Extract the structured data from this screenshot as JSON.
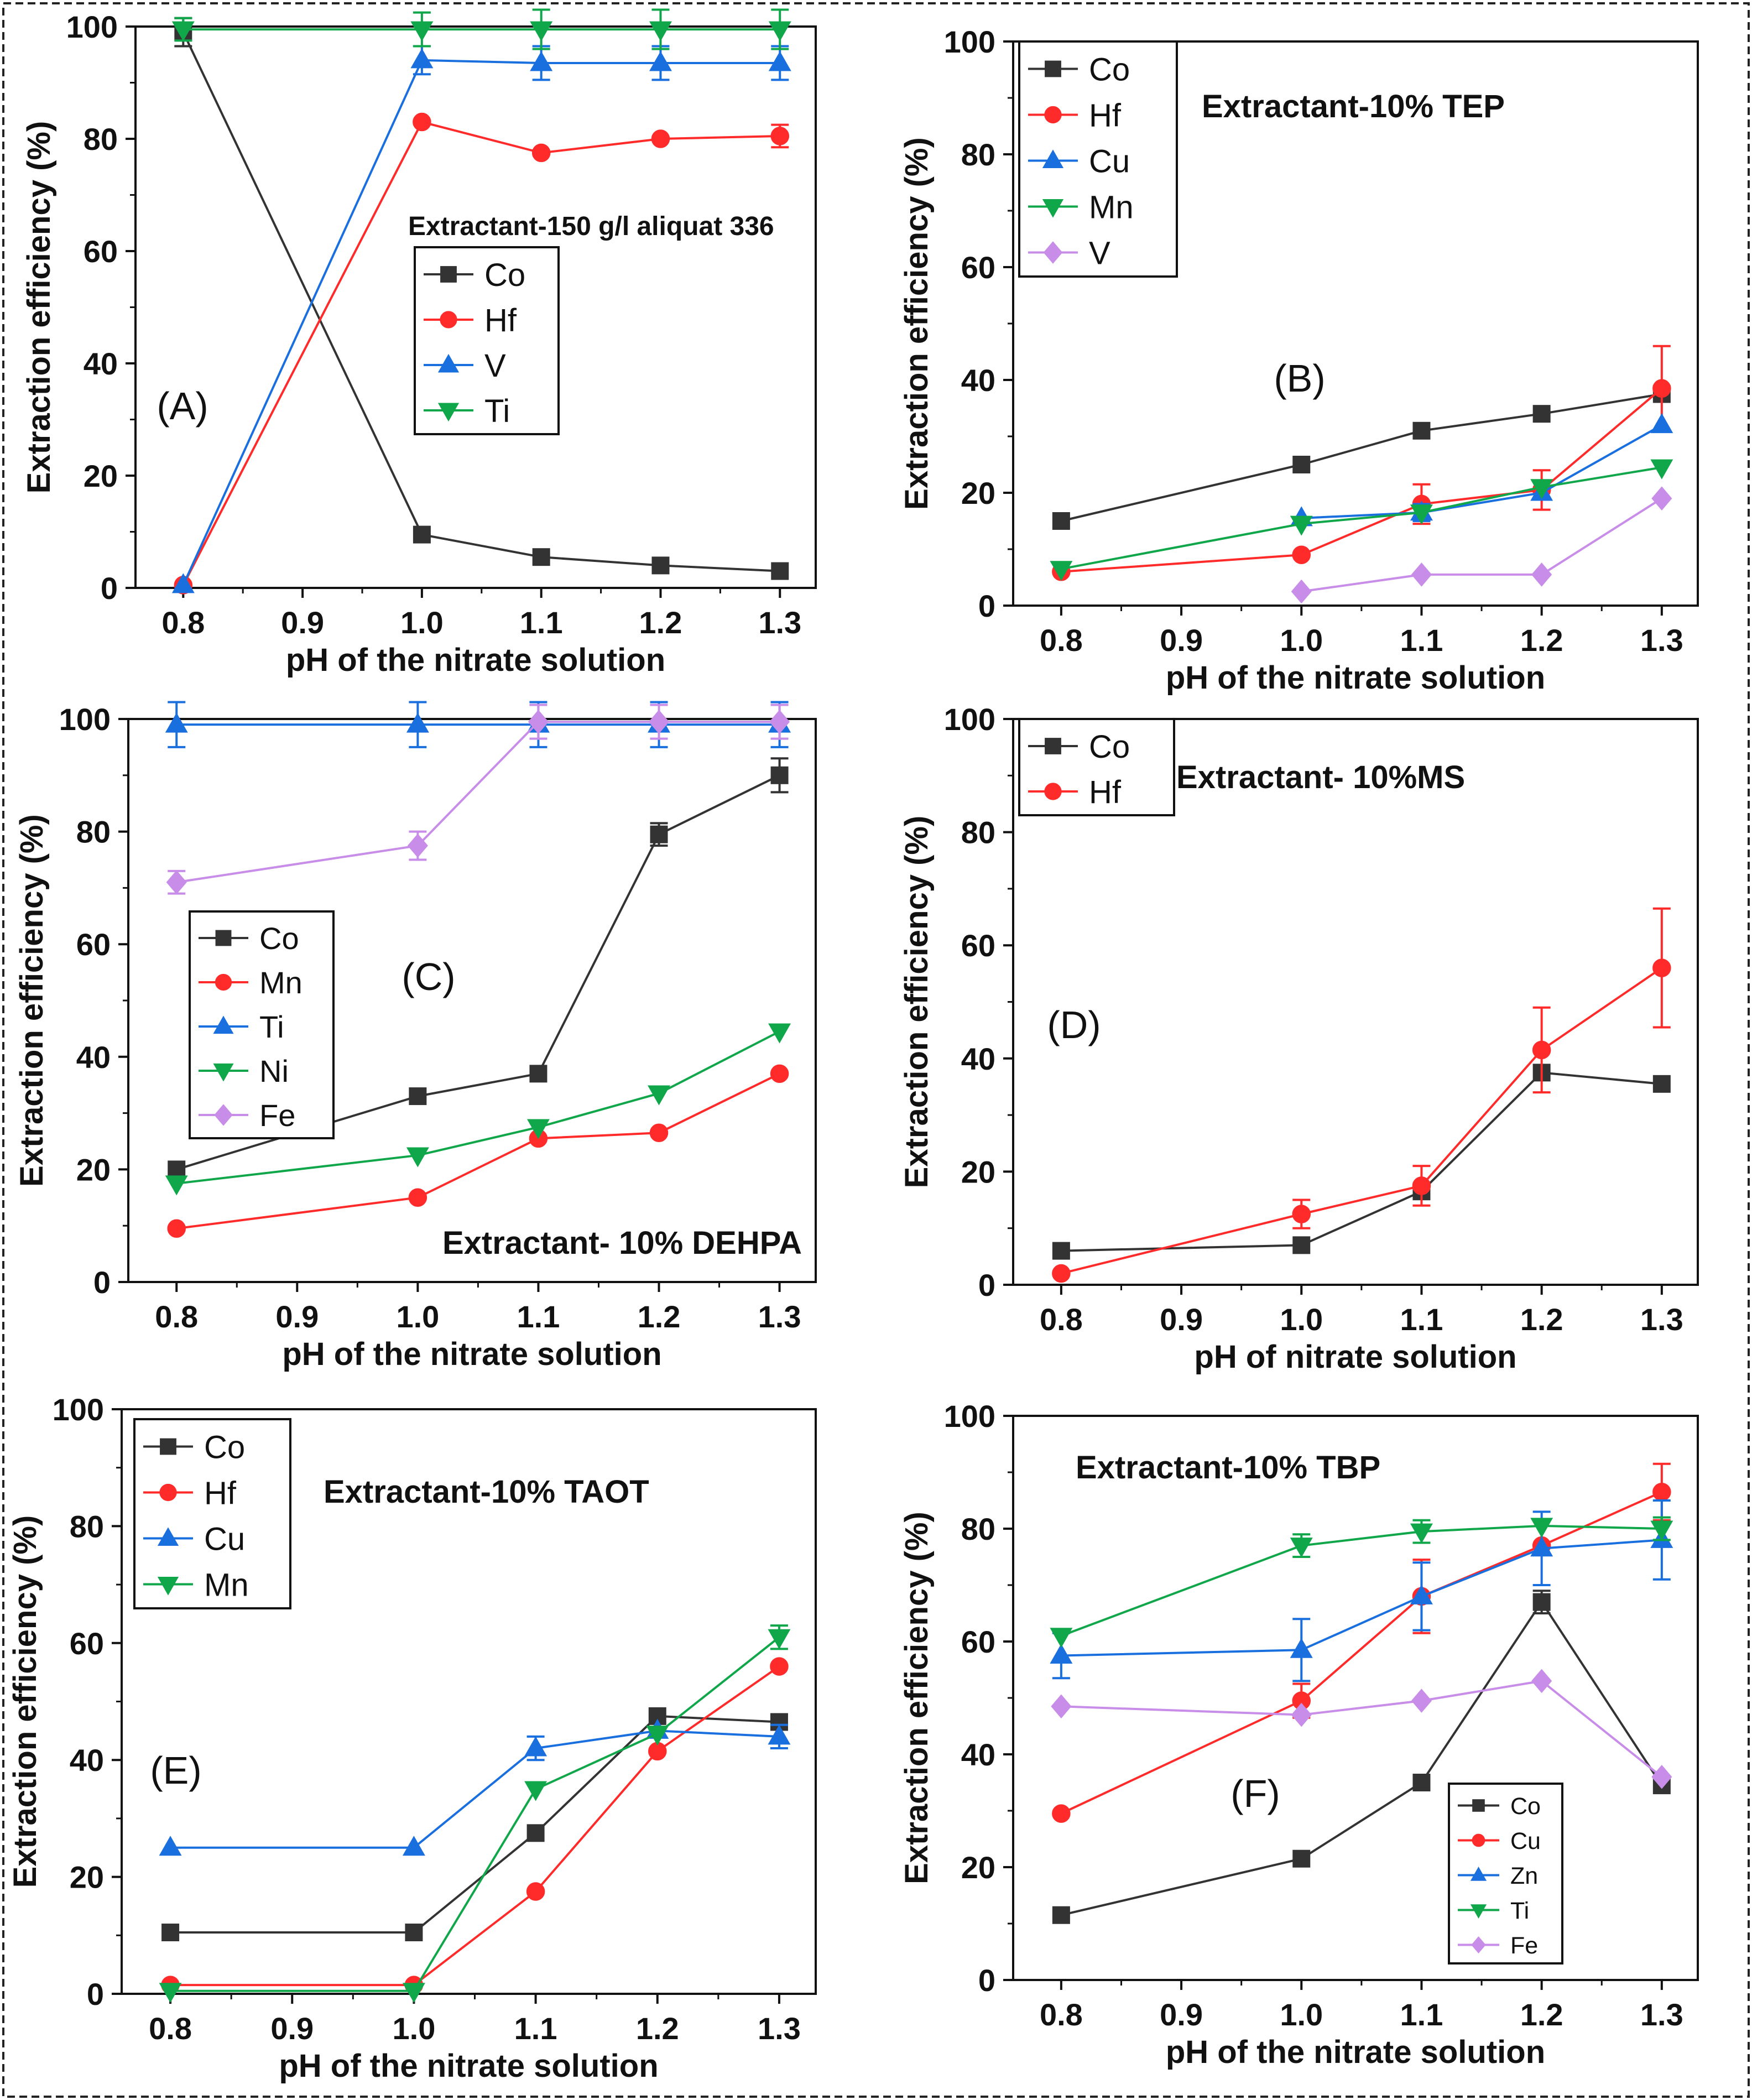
{
  "chart_data": [
    {
      "panel_label": "(A)",
      "type": "line",
      "annotation": "Extractant-150 g/l aliquat 336",
      "xlabel": "pH of the nitrate solution",
      "ylabel": "Extraction efficiency (%)",
      "xlim": [
        0.76,
        1.33
      ],
      "ylim": [
        0,
        100
      ],
      "xticks": [
        "0.8",
        "0.9",
        "1.0",
        "1.1",
        "1.2",
        "1.3"
      ],
      "yticks": [
        "0",
        "20",
        "40",
        "60",
        "80",
        "100"
      ],
      "legend_position": "middle-center",
      "series": [
        {
          "name": "Co",
          "color": "#333333",
          "marker": "square",
          "x": [
            0.8,
            1.0,
            1.1,
            1.2,
            1.3
          ],
          "values": [
            99,
            9.5,
            5.5,
            4,
            3
          ],
          "errors": [
            2.5,
            0,
            0,
            0,
            0
          ]
        },
        {
          "name": "Hf",
          "color": "#ff2a2a",
          "marker": "circle",
          "x": [
            0.8,
            1.0,
            1.1,
            1.2,
            1.3
          ],
          "values": [
            0.5,
            83,
            77.5,
            80,
            80.5
          ],
          "errors": [
            0,
            0,
            0,
            0,
            2
          ]
        },
        {
          "name": "V",
          "color": "#1a6fdf",
          "marker": "triangle-up",
          "x": [
            0.8,
            1.0,
            1.1,
            1.2,
            1.3
          ],
          "values": [
            0.5,
            94,
            93.5,
            93.5,
            93.5
          ],
          "errors": [
            0,
            2.5,
            3,
            3,
            3
          ]
        },
        {
          "name": "Ti",
          "color": "#10a64a",
          "marker": "triangle-down",
          "x": [
            0.8,
            1.0,
            1.1,
            1.2,
            1.3
          ],
          "values": [
            99.5,
            99.5,
            99.5,
            99.5,
            99.5
          ],
          "errors": [
            2,
            3,
            3.5,
            3.5,
            3.5
          ]
        }
      ]
    },
    {
      "panel_label": "(B)",
      "type": "line",
      "annotation": "Extractant-10% TEP",
      "xlabel": "pH of the nitrate solution",
      "ylabel": "Extraction efficiency (%)",
      "xlim": [
        0.76,
        1.33
      ],
      "ylim": [
        0,
        100
      ],
      "xticks": [
        "0.8",
        "0.9",
        "1.0",
        "1.1",
        "1.2",
        "1.3"
      ],
      "yticks": [
        "0",
        "20",
        "40",
        "60",
        "80",
        "100"
      ],
      "legend_position": "top-left",
      "series": [
        {
          "name": "Co",
          "color": "#333333",
          "marker": "square",
          "x": [
            0.8,
            1.0,
            1.1,
            1.2,
            1.3
          ],
          "values": [
            15,
            25,
            31,
            34,
            37.5
          ],
          "errors": [
            0,
            0,
            0,
            0,
            0
          ]
        },
        {
          "name": "Hf",
          "color": "#ff2a2a",
          "marker": "circle",
          "x": [
            0.8,
            1.0,
            1.1,
            1.2,
            1.3
          ],
          "values": [
            6,
            9,
            18,
            20.5,
            38.5
          ],
          "errors": [
            0,
            0,
            3.5,
            3.5,
            7.5
          ]
        },
        {
          "name": "Cu",
          "color": "#1a6fdf",
          "marker": "triangle-up",
          "x": [
            1.0,
            1.1,
            1.2,
            1.3
          ],
          "values": [
            15.5,
            16.5,
            20,
            32
          ],
          "errors": [
            0,
            1.5,
            0,
            0
          ]
        },
        {
          "name": "Mn",
          "color": "#10a64a",
          "marker": "triangle-down",
          "x": [
            0.8,
            1.0,
            1.1,
            1.2,
            1.3
          ],
          "values": [
            6.5,
            14.5,
            16.5,
            21,
            24.5
          ],
          "errors": [
            0,
            0,
            0,
            0,
            0
          ]
        },
        {
          "name": "V",
          "color": "#c88de8",
          "marker": "diamond",
          "x": [
            1.0,
            1.1,
            1.2,
            1.3
          ],
          "values": [
            2.5,
            5.5,
            5.5,
            19
          ],
          "errors": [
            0,
            0,
            0,
            0
          ]
        }
      ]
    },
    {
      "panel_label": "(C)",
      "type": "line",
      "annotation": "Extractant- 10% DEHPA",
      "xlabel": "pH of the nitrate solution",
      "ylabel": "Extraction efficiency (%)",
      "xlim": [
        0.76,
        1.33
      ],
      "ylim": [
        0,
        100
      ],
      "xticks": [
        "0.8",
        "0.9",
        "1.0",
        "1.1",
        "1.2",
        "1.3"
      ],
      "yticks": [
        "0",
        "20",
        "40",
        "60",
        "80",
        "100"
      ],
      "legend_position": "middle-left",
      "series": [
        {
          "name": "Co",
          "color": "#333333",
          "marker": "square",
          "x": [
            0.8,
            1.0,
            1.1,
            1.2,
            1.3
          ],
          "values": [
            20,
            33,
            37,
            79.5,
            90
          ],
          "errors": [
            0,
            0,
            0,
            2,
            3
          ]
        },
        {
          "name": "Mn",
          "color": "#ff2a2a",
          "marker": "circle",
          "x": [
            0.8,
            1.0,
            1.1,
            1.2,
            1.3
          ],
          "values": [
            9.5,
            15,
            25.5,
            26.5,
            37
          ],
          "errors": [
            0,
            0,
            0,
            0,
            0
          ]
        },
        {
          "name": "Ti",
          "color": "#1a6fdf",
          "marker": "triangle-up",
          "x": [
            0.8,
            1.0,
            1.1,
            1.2,
            1.3
          ],
          "values": [
            99,
            99,
            99,
            99,
            99
          ],
          "errors": [
            4,
            4,
            4,
            4,
            4
          ]
        },
        {
          "name": "Ni",
          "color": "#10a64a",
          "marker": "triangle-down",
          "x": [
            0.8,
            1.0,
            1.1,
            1.2,
            1.3
          ],
          "values": [
            17.5,
            22.5,
            27.5,
            33.5,
            44.5
          ],
          "errors": [
            0,
            0,
            0,
            0,
            0
          ]
        },
        {
          "name": "Fe",
          "color": "#c88de8",
          "marker": "diamond",
          "x": [
            0.8,
            1.0,
            1.1,
            1.2,
            1.3
          ],
          "values": [
            71,
            77.5,
            99.5,
            99.5,
            99.5
          ],
          "errors": [
            2,
            2.5,
            3,
            3,
            3
          ]
        }
      ]
    },
    {
      "panel_label": "(D)",
      "type": "line",
      "annotation": "Extractant- 10%MS",
      "xlabel": "pH of nitrate solution",
      "ylabel": "Extraction efficiency (%)",
      "xlim": [
        0.76,
        1.33
      ],
      "ylim": [
        0,
        100
      ],
      "xticks": [
        "0.8",
        "0.9",
        "1.0",
        "1.1",
        "1.2",
        "1.3"
      ],
      "yticks": [
        "0",
        "20",
        "40",
        "60",
        "80",
        "100"
      ],
      "legend_position": "top-left",
      "series": [
        {
          "name": "Co",
          "color": "#333333",
          "marker": "square",
          "x": [
            0.8,
            1.0,
            1.1,
            1.2,
            1.3
          ],
          "values": [
            6,
            7,
            16.5,
            37.5,
            35.5
          ],
          "errors": [
            0,
            0,
            0,
            0,
            0
          ]
        },
        {
          "name": "Hf",
          "color": "#ff2a2a",
          "marker": "circle",
          "x": [
            0.8,
            1.0,
            1.1,
            1.2,
            1.3
          ],
          "values": [
            2,
            12.5,
            17.5,
            41.5,
            56
          ],
          "errors": [
            0,
            2.5,
            3.5,
            7.5,
            10.5
          ]
        }
      ]
    },
    {
      "panel_label": "(E)",
      "type": "line",
      "annotation": "Extractant-10% TAOT",
      "xlabel": "pH of the nitrate solution",
      "ylabel": "Extraction efficiency (%)",
      "xlim": [
        0.76,
        1.33
      ],
      "ylim": [
        0,
        100
      ],
      "xticks": [
        "0.8",
        "0.9",
        "1.0",
        "1.1",
        "1.2",
        "1.3"
      ],
      "yticks": [
        "0",
        "20",
        "40",
        "60",
        "80",
        "100"
      ],
      "legend_position": "top-left",
      "series": [
        {
          "name": "Co",
          "color": "#333333",
          "marker": "square",
          "x": [
            0.8,
            1.0,
            1.1,
            1.2,
            1.3
          ],
          "values": [
            10.5,
            10.5,
            27.5,
            47.5,
            46.5
          ],
          "errors": [
            0,
            0,
            0,
            0,
            0
          ]
        },
        {
          "name": "Hf",
          "color": "#ff2a2a",
          "marker": "circle",
          "x": [
            0.8,
            1.0,
            1.1,
            1.2,
            1.3
          ],
          "values": [
            1.5,
            1.5,
            17.5,
            41.5,
            56
          ],
          "errors": [
            0,
            0,
            0,
            0,
            0
          ]
        },
        {
          "name": "Cu",
          "color": "#1a6fdf",
          "marker": "triangle-up",
          "x": [
            0.8,
            1.0,
            1.1,
            1.2,
            1.3
          ],
          "values": [
            25,
            25,
            42,
            45,
            44
          ],
          "errors": [
            0,
            0,
            2,
            0,
            2
          ]
        },
        {
          "name": "Mn",
          "color": "#10a64a",
          "marker": "triangle-down",
          "x": [
            0.8,
            1.0,
            1.1,
            1.2,
            1.3
          ],
          "values": [
            0.5,
            0.5,
            35,
            44.5,
            61
          ],
          "errors": [
            0,
            0,
            0,
            0,
            2
          ]
        }
      ]
    },
    {
      "panel_label": "(F)",
      "type": "line",
      "annotation": "Extractant-10% TBP",
      "xlabel": "pH of the nitrate solution",
      "ylabel": "Extraction efficiency (%)",
      "xlim": [
        0.76,
        1.33
      ],
      "ylim": [
        0,
        100
      ],
      "xticks": [
        "0.8",
        "0.9",
        "1.0",
        "1.1",
        "1.2",
        "1.3"
      ],
      "yticks": [
        "0",
        "20",
        "40",
        "60",
        "80",
        "100"
      ],
      "legend_position": "bottom-right",
      "series": [
        {
          "name": "Co",
          "color": "#333333",
          "marker": "square",
          "x": [
            0.8,
            1.0,
            1.1,
            1.2,
            1.3
          ],
          "values": [
            11.5,
            21.5,
            35,
            67,
            34.5
          ],
          "errors": [
            0,
            0,
            0,
            2,
            0
          ]
        },
        {
          "name": "Cu",
          "color": "#ff2a2a",
          "marker": "circle",
          "x": [
            0.8,
            1.0,
            1.1,
            1.2,
            1.3
          ],
          "values": [
            29.5,
            49.5,
            68,
            77,
            86.5
          ],
          "errors": [
            0,
            3,
            6.5,
            0,
            5
          ]
        },
        {
          "name": "Zn",
          "color": "#1a6fdf",
          "marker": "triangle-up",
          "x": [
            0.8,
            1.0,
            1.1,
            1.2,
            1.3
          ],
          "values": [
            57.5,
            58.5,
            68,
            76.5,
            78
          ],
          "errors": [
            4,
            5.5,
            6,
            6.5,
            7
          ]
        },
        {
          "name": "Ti",
          "color": "#10a64a",
          "marker": "triangle-down",
          "x": [
            0.8,
            1.0,
            1.1,
            1.2,
            1.3
          ],
          "values": [
            61,
            77,
            79.5,
            80.5,
            80
          ],
          "errors": [
            0,
            2,
            2,
            0,
            2
          ]
        },
        {
          "name": "Fe",
          "color": "#c88de8",
          "marker": "diamond",
          "x": [
            0.8,
            1.0,
            1.1,
            1.2,
            1.3
          ],
          "values": [
            48.5,
            47,
            49.5,
            53,
            36
          ],
          "errors": [
            0,
            0,
            0,
            0,
            0
          ]
        }
      ]
    }
  ]
}
